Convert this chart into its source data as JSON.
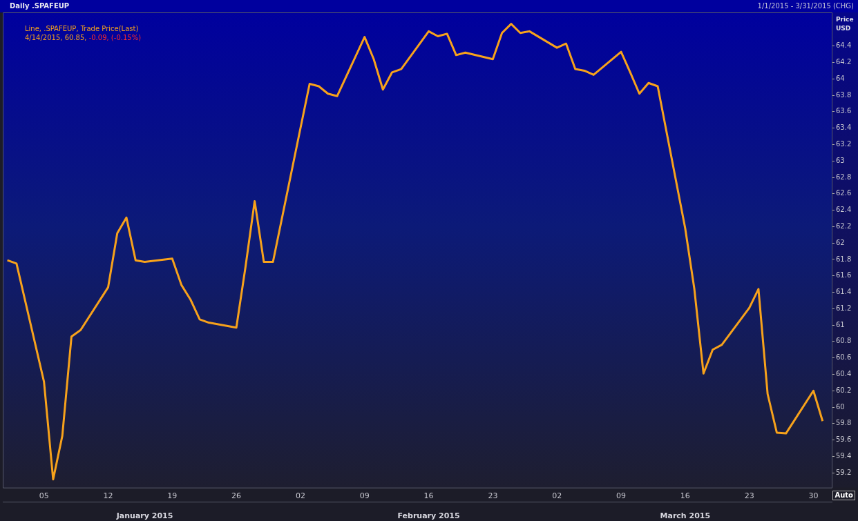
{
  "chart_data": {
    "type": "line",
    "title": "Daily .SPAFEUP",
    "subtitle": "1/1/2015 - 3/31/2015 (CHG)",
    "ylabel": "Price USD",
    "annotations": [
      "Line, .SPAFEUP, Trade Price(Last)",
      "4/14/2015, 60.85,",
      "-0.09, (-0.15%)",
      "Auto"
    ],
    "x": [
      "2015-01-01",
      "2015-01-02",
      "2015-01-05",
      "2015-01-06",
      "2015-01-07",
      "2015-01-08",
      "2015-01-09",
      "2015-01-12",
      "2015-01-13",
      "2015-01-14",
      "2015-01-15",
      "2015-01-16",
      "2015-01-19",
      "2015-01-20",
      "2015-01-21",
      "2015-01-22",
      "2015-01-23",
      "2015-01-26",
      "2015-01-27",
      "2015-01-28",
      "2015-01-29",
      "2015-01-30",
      "2015-02-02",
      "2015-02-03",
      "2015-02-04",
      "2015-02-05",
      "2015-02-06",
      "2015-02-09",
      "2015-02-10",
      "2015-02-11",
      "2015-02-12",
      "2015-02-13",
      "2015-02-16",
      "2015-02-17",
      "2015-02-18",
      "2015-02-19",
      "2015-02-20",
      "2015-02-23",
      "2015-02-24",
      "2015-02-25",
      "2015-02-26",
      "2015-02-27",
      "2015-03-02",
      "2015-03-03",
      "2015-03-04",
      "2015-03-05",
      "2015-03-06",
      "2015-03-09",
      "2015-03-10",
      "2015-03-11",
      "2015-03-12",
      "2015-03-13",
      "2015-03-16",
      "2015-03-17",
      "2015-03-18",
      "2015-03-19",
      "2015-03-20",
      "2015-03-23",
      "2015-03-24",
      "2015-03-25",
      "2015-03-26",
      "2015-03-27",
      "2015-03-30",
      "2015-03-31"
    ],
    "series": [
      {
        "color": "#f7a21b",
        "values": [
          61.79,
          61.75,
          60.31,
          59.12,
          59.65,
          60.86,
          60.94,
          61.46,
          62.12,
          62.31,
          61.79,
          61.77,
          61.81,
          61.49,
          61.31,
          61.07,
          61.03,
          60.97,
          61.71,
          62.51,
          61.77,
          61.77,
          63.4,
          63.94,
          63.91,
          63.82,
          63.79,
          64.51,
          64.24,
          63.87,
          64.08,
          64.12,
          64.58,
          64.52,
          64.55,
          64.29,
          64.32,
          64.24,
          64.56,
          64.67,
          64.56,
          64.58,
          64.38,
          64.43,
          64.12,
          64.1,
          64.05,
          64.33,
          64.08,
          63.82,
          63.95,
          63.91,
          62.18,
          61.44,
          60.41,
          60.7,
          60.76,
          61.21,
          61.44,
          60.16,
          59.69,
          59.68,
          60.2,
          59.83
        ]
      }
    ],
    "xlim": [
      "2014-12-31T12:00",
      "2015-04-01T00:00"
    ],
    "xticks": [
      {
        "value": "2015-01-05",
        "label": "05"
      },
      {
        "value": "2015-01-12",
        "label": "12"
      },
      {
        "value": "2015-01-19",
        "label": "19"
      },
      {
        "value": "2015-01-26",
        "label": "26"
      },
      {
        "value": "2015-02-02",
        "label": "02"
      },
      {
        "value": "2015-02-09",
        "label": "09"
      },
      {
        "value": "2015-02-16",
        "label": "16"
      },
      {
        "value": "2015-02-23",
        "label": "23"
      },
      {
        "value": "2015-03-02",
        "label": "02"
      },
      {
        "value": "2015-03-09",
        "label": "09"
      },
      {
        "value": "2015-03-16",
        "label": "16"
      },
      {
        "value": "2015-03-23",
        "label": "23"
      },
      {
        "value": "2015-03-30",
        "label": "30"
      }
    ],
    "x2lim": [
      "2014-12-31T12:00",
      "2015-04-01T00:00"
    ],
    "x2ticks": [
      {
        "value": "2015-01-16",
        "label": "January 2015"
      },
      {
        "value": "2015-02-16",
        "label": "February 2015"
      },
      {
        "value": "2015-03-16",
        "label": "March 2015"
      }
    ],
    "ylim": [
      59.02,
      64.81
    ],
    "yticks": [
      59.2,
      59.4,
      59.6,
      59.8,
      60,
      60.2,
      60.4,
      60.6,
      60.8,
      61,
      61.2,
      61.4,
      61.6,
      61.8,
      62,
      62.2,
      62.4,
      62.6,
      62.8,
      63,
      63.2,
      63.4,
      63.6,
      63.8,
      64,
      64.2,
      64.4
    ],
    "grid": false,
    "legend": false,
    "marker": "none",
    "line_style": "solid"
  }
}
